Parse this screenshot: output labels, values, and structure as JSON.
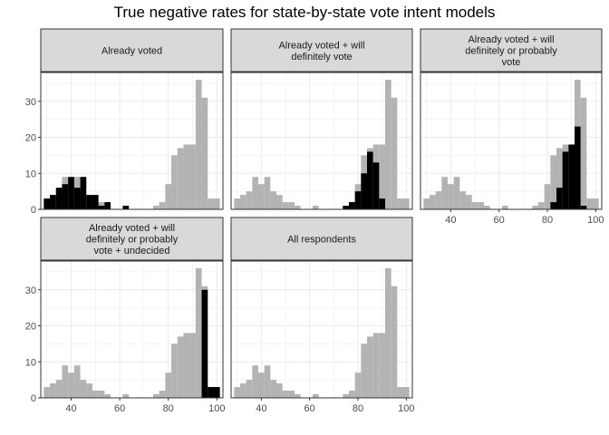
{
  "chart_data": {
    "type": "bar",
    "title": "True negative rates for state-by-state vote intent models",
    "xlabel": "",
    "ylabel": "",
    "xlim": [
      27.5,
      102.5
    ],
    "ylim": [
      0,
      38
    ],
    "x_ticks": [
      40,
      60,
      80,
      100
    ],
    "y_ticks": [
      0,
      10,
      20,
      30
    ],
    "bin_width": 2.5,
    "bin_centers": [
      30,
      32.5,
      35,
      37.5,
      40,
      42.5,
      45,
      47.5,
      50,
      52.5,
      55,
      57.5,
      60,
      62.5,
      65,
      67.5,
      70,
      72.5,
      75,
      77.5,
      80,
      82.5,
      85,
      87.5,
      90,
      92.5,
      95,
      97.5,
      100
    ],
    "colors": {
      "background_series": "#b3b3b3",
      "highlight_series": "#000000",
      "strip_fill": "#d9d9d9",
      "grid": "#ebebeb"
    },
    "background_counts": [
      3,
      4,
      5,
      9,
      7,
      9,
      5,
      4,
      2,
      2,
      1,
      0,
      0,
      1,
      0,
      0,
      0,
      0,
      1,
      2,
      7,
      15,
      17,
      18,
      18,
      36,
      31,
      3,
      3
    ],
    "panels": [
      {
        "label": "Already voted",
        "highlight": [
          3,
          4,
          6,
          7,
          9,
          6,
          9,
          4,
          4,
          1,
          2,
          0,
          0,
          1,
          0,
          0,
          0,
          0,
          0,
          0,
          0,
          0,
          0,
          0,
          0,
          0,
          0,
          0,
          0
        ]
      },
      {
        "label": "Already voted + will\ndefinitely vote",
        "highlight": [
          0,
          0,
          0,
          0,
          0,
          0,
          0,
          0,
          0,
          0,
          0,
          0,
          0,
          0,
          0,
          0,
          0,
          0,
          1,
          2,
          5,
          10,
          16,
          13,
          3,
          0,
          0,
          0,
          0
        ]
      },
      {
        "label": "Already voted + will\ndefinitely or probably\nvote",
        "highlight": [
          0,
          0,
          0,
          0,
          0,
          0,
          0,
          0,
          0,
          0,
          0,
          0,
          0,
          0,
          0,
          0,
          0,
          0,
          0,
          0,
          0,
          2,
          6,
          16,
          18,
          23,
          1,
          0,
          0
        ]
      },
      {
        "label": "Already voted + will\ndefinitely or probably\nvote + undecided",
        "highlight": [
          0,
          0,
          0,
          0,
          0,
          0,
          0,
          0,
          0,
          0,
          0,
          0,
          0,
          0,
          0,
          0,
          0,
          0,
          0,
          0,
          0,
          0,
          0,
          0,
          0,
          0,
          30,
          3,
          3
        ]
      },
      {
        "label": "All respondents",
        "highlight": [
          0,
          0,
          0,
          0,
          0,
          0,
          0,
          0,
          0,
          0,
          0,
          0,
          0,
          0,
          0,
          0,
          0,
          0,
          0,
          0,
          0,
          0,
          0,
          0,
          0,
          0,
          0,
          0,
          0
        ]
      }
    ]
  }
}
